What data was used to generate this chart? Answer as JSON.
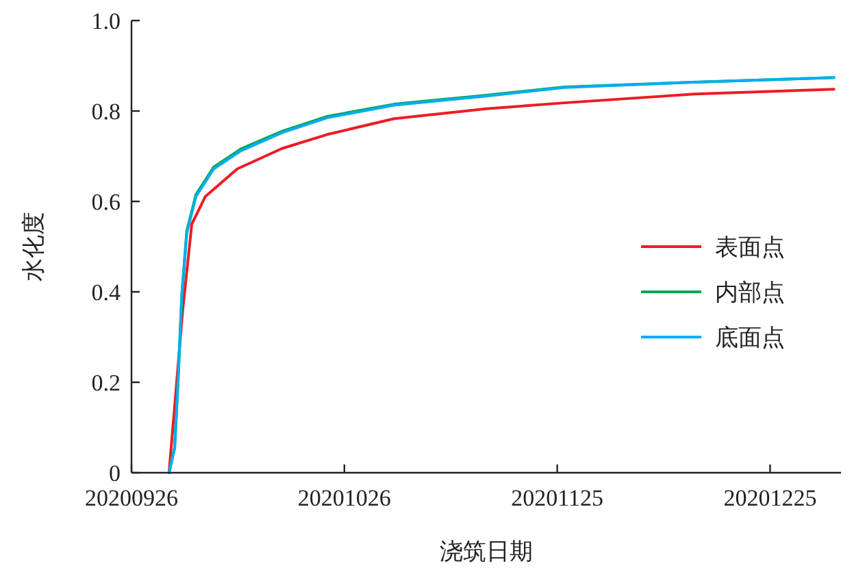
{
  "chart_data": {
    "type": "line",
    "xlabel": "浇筑日期",
    "ylabel": "水化度",
    "xlim": [
      "2020-09-26",
      "2021-01-04"
    ],
    "ylim": [
      0,
      1
    ],
    "xticks": [
      {
        "value": "2020-09-26",
        "label": "20200926"
      },
      {
        "value": "2020-10-26",
        "label": "20201026"
      },
      {
        "value": "2020-11-25",
        "label": "20201125"
      },
      {
        "value": "2020-12-25",
        "label": "20201225"
      }
    ],
    "yticks": [
      0,
      0.2,
      0.4,
      0.6,
      0.8,
      {
        "value": 1,
        "label": "1.0"
      }
    ],
    "legend": "right",
    "grid": false,
    "marker": "none",
    "line_style": "solid",
    "series": [
      {
        "name": "表面点",
        "color": "#ed1c24",
        "x": [
          "2020-10-01T07:00",
          "2020-10-03T05:00",
          "2020-10-04T12:00",
          "2020-10-06T10:00",
          "2020-10-10T22:00",
          "2020-10-17T05:00",
          "2020-10-23T14:00",
          "2020-11-02",
          "2020-11-15",
          "2020-11-26",
          "2020-12-15",
          "2021-01-03"
        ],
        "values": [
          0,
          0.358,
          0.55,
          0.611,
          0.672,
          0.717,
          0.748,
          0.783,
          0.805,
          0.818,
          0.838,
          0.848
        ]
      },
      {
        "name": "内部点",
        "color": "#00a651",
        "x": [
          "2020-10-01T07:00",
          "2020-10-02T02:00",
          "2020-10-02T14:00",
          "2020-10-03T02:00",
          "2020-10-03T19:00",
          "2020-10-05T02:00",
          "2020-10-07T14:00",
          "2020-10-11T10:00",
          "2020-10-17T05:00",
          "2020-10-23T14:00",
          "2020-11-02",
          "2020-11-15",
          "2020-11-26",
          "2020-12-15",
          "2021-01-03"
        ],
        "values": [
          0,
          0.055,
          0.21,
          0.392,
          0.535,
          0.615,
          0.676,
          0.716,
          0.755,
          0.788,
          0.815,
          0.835,
          0.853,
          0.864,
          0.874
        ]
      },
      {
        "name": "底面点",
        "color": "#00aeef",
        "x": [
          "2020-10-01T07:00",
          "2020-10-02T02:00",
          "2020-10-02T14:00",
          "2020-10-03T02:00",
          "2020-10-03T19:00",
          "2020-10-05T02:00",
          "2020-10-07T14:00",
          "2020-10-11T10:00",
          "2020-10-17T05:00",
          "2020-10-23T14:00",
          "2020-11-02",
          "2020-11-15",
          "2020-11-26",
          "2020-12-15",
          "2021-01-03"
        ],
        "values": [
          0,
          0.055,
          0.207,
          0.389,
          0.53,
          0.611,
          0.672,
          0.712,
          0.752,
          0.785,
          0.813,
          0.833,
          0.852,
          0.864,
          0.874
        ]
      }
    ]
  }
}
